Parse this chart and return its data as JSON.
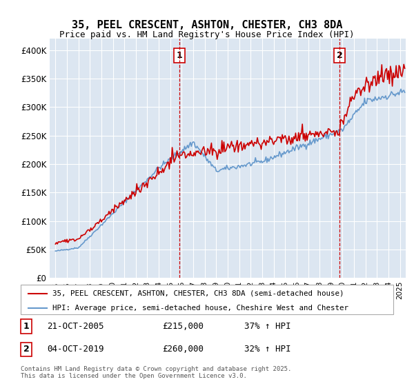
{
  "title": "35, PEEL CRESCENT, ASHTON, CHESTER, CH3 8DA",
  "subtitle": "Price paid vs. HM Land Registry's House Price Index (HPI)",
  "legend_line1": "35, PEEL CRESCENT, ASHTON, CHESTER, CH3 8DA (semi-detached house)",
  "legend_line2": "HPI: Average price, semi-detached house, Cheshire West and Chester",
  "sale1_date": "21-OCT-2005",
  "sale1_price": 215000,
  "sale1_pct": "37% ↑ HPI",
  "sale1_year": 2005.8,
  "sale2_date": "04-OCT-2019",
  "sale2_price": 260000,
  "sale2_pct": "32% ↑ HPI",
  "sale2_year": 2019.75,
  "red_color": "#cc0000",
  "blue_color": "#6699cc",
  "bg_color": "#dce6f1",
  "grid_color": "#ffffff",
  "footer": "Contains HM Land Registry data © Crown copyright and database right 2025.\nThis data is licensed under the Open Government Licence v3.0.",
  "ylim": [
    0,
    420000
  ],
  "yticks": [
    0,
    50000,
    100000,
    150000,
    200000,
    250000,
    300000,
    350000,
    400000
  ],
  "ytick_labels": [
    "£0",
    "£50K",
    "£100K",
    "£150K",
    "£200K",
    "£250K",
    "£300K",
    "£350K",
    "£400K"
  ],
  "xmin": 1994.5,
  "xmax": 2025.5
}
